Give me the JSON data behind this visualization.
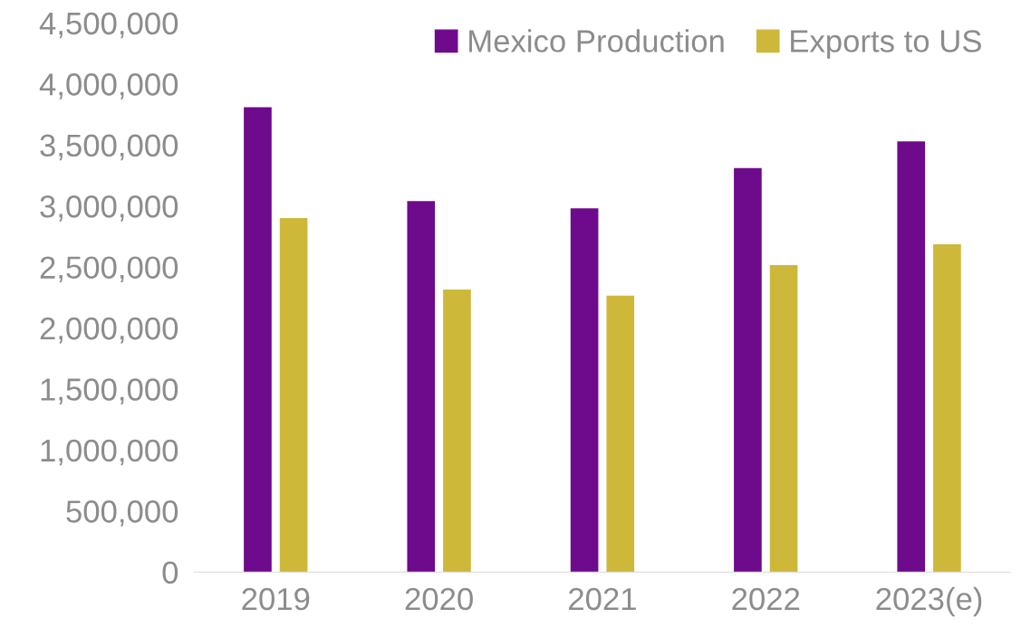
{
  "chart_data": {
    "type": "bar",
    "categories": [
      "2019",
      "2020",
      "2021",
      "2022",
      "2023(e)"
    ],
    "series": [
      {
        "name": "Mexico Production",
        "color": "#6e0a8c",
        "values": [
          3810000,
          3040000,
          2980000,
          3310000,
          3530000
        ]
      },
      {
        "name": "Exports to US",
        "color": "#cdb83a",
        "values": [
          2900000,
          2315000,
          2265000,
          2515000,
          2685000
        ]
      }
    ],
    "ylim": [
      0,
      4500000
    ],
    "yticks": [
      {
        "value": 0,
        "label": "0"
      },
      {
        "value": 500000,
        "label": "500,000"
      },
      {
        "value": 1000000,
        "label": "1,000,000"
      },
      {
        "value": 1500000,
        "label": "1,500,000"
      },
      {
        "value": 2000000,
        "label": "2,000,000"
      },
      {
        "value": 2500000,
        "label": "2,500,000"
      },
      {
        "value": 3000000,
        "label": "3,000,000"
      },
      {
        "value": 3500000,
        "label": "3,500,000"
      },
      {
        "value": 4000000,
        "label": "4,000,000"
      },
      {
        "value": 4500000,
        "label": "4,500,000"
      }
    ],
    "grid": false,
    "legend": "top right"
  }
}
